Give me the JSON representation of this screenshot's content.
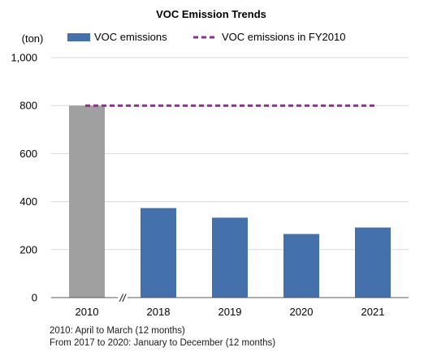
{
  "chart_data": {
    "type": "bar",
    "title": "VOC Emission Trends",
    "ylabel": "(ton)",
    "xlabel": "",
    "categories": [
      "2010",
      "2018",
      "2019",
      "2020",
      "2021"
    ],
    "series": [
      {
        "name": "VOC emissions",
        "values": [
          800,
          373,
          333,
          265,
          292
        ]
      }
    ],
    "reference_line": {
      "name": "VOC emissions in FY2010",
      "value": 800
    },
    "yticks": [
      "0",
      "200",
      "400",
      "600",
      "800",
      "1,000"
    ],
    "ylim": [
      0,
      1000
    ],
    "axis_break_marker": "//",
    "grid": true,
    "legend_position": "top",
    "colors": {
      "bar_base_year": "#a0a0a0",
      "bar": "#4470ab",
      "reference_line": "#8e2e8e",
      "grid": "#d9d9d9",
      "axis": "#595959"
    }
  },
  "notes": [
    "2010: April to March (12 months)",
    "From 2017 to 2020: January to December (12 months)"
  ]
}
